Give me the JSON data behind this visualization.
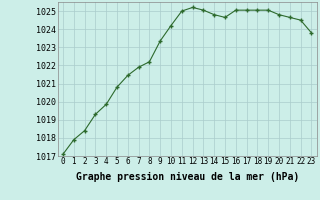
{
  "x": [
    0,
    1,
    2,
    3,
    4,
    5,
    6,
    7,
    8,
    9,
    10,
    11,
    12,
    13,
    14,
    15,
    16,
    17,
    18,
    19,
    20,
    21,
    22,
    23
  ],
  "y": [
    1017.1,
    1017.9,
    1018.4,
    1019.3,
    1019.85,
    1020.8,
    1021.45,
    1021.9,
    1022.2,
    1023.35,
    1024.2,
    1025.0,
    1025.2,
    1025.05,
    1024.8,
    1024.65,
    1025.05,
    1025.05,
    1025.05,
    1025.05,
    1024.8,
    1024.65,
    1024.5,
    1023.8
  ],
  "line_color": "#2d6a2d",
  "marker": "+",
  "marker_size": 3.5,
  "marker_linewidth": 1.0,
  "line_width": 0.8,
  "background_color": "#cceee8",
  "grid_color": "#aacccc",
  "xlabel": "Graphe pression niveau de la mer (hPa)",
  "xlabel_fontsize": 7,
  "ylim_min": 1017,
  "ylim_max": 1025.5,
  "xlim_min": -0.5,
  "xlim_max": 23.5,
  "yticks": [
    1017,
    1018,
    1019,
    1020,
    1021,
    1022,
    1023,
    1024,
    1025
  ],
  "xtick_labels": [
    "0",
    "1",
    "2",
    "3",
    "4",
    "5",
    "6",
    "7",
    "8",
    "9",
    "10",
    "11",
    "12",
    "13",
    "14",
    "15",
    "16",
    "17",
    "18",
    "19",
    "20",
    "21",
    "22",
    "23"
  ],
  "tick_fontsize": 5.5,
  "ytick_fontsize": 6.0
}
